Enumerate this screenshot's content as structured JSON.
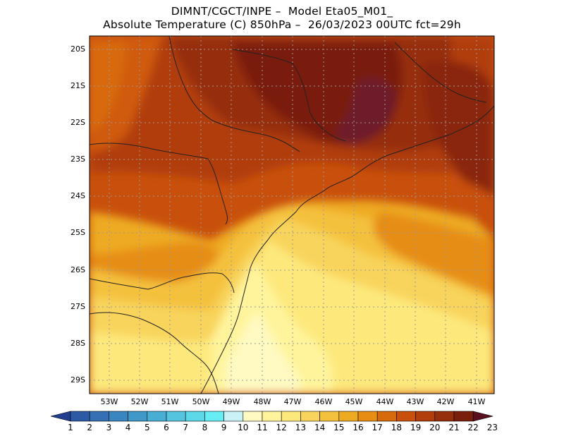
{
  "title": {
    "line1": "DIMNT/CGCT/INPE –  Model Eta05_M01_",
    "line2": "Absolute Temperature (C) 850hPa –  26/03/2023 00UTC fct=29h"
  },
  "axes": {
    "lat_labels": [
      "20S",
      "21S",
      "22S",
      "23S",
      "24S",
      "25S",
      "26S",
      "27S",
      "28S",
      "29S"
    ],
    "lon_labels": [
      "53W",
      "52W",
      "51W",
      "50W",
      "49W",
      "48W",
      "47W",
      "46W",
      "45W",
      "44W",
      "43W",
      "42W",
      "41W"
    ],
    "lat_range": [
      -29.5,
      -19.6
    ],
    "lon_range": [
      -53.8,
      -40.6
    ],
    "grid": "dotted"
  },
  "colorbar": {
    "labels": [
      "1",
      "2",
      "3",
      "4",
      "5",
      "6",
      "7",
      "8",
      "9",
      "10",
      "11",
      "12",
      "13",
      "14",
      "15",
      "16",
      "17",
      "18",
      "19",
      "20",
      "21",
      "22",
      "23"
    ],
    "colors": [
      "#243e8f",
      "#2d5aa5",
      "#3470b3",
      "#3a86c0",
      "#4098c9",
      "#49aed4",
      "#55c4de",
      "#5cd8e8",
      "#66eef4",
      "#c9f1f6",
      "#fff9c2",
      "#fff49c",
      "#fde87c",
      "#f8d45c",
      "#f4c13e",
      "#eeaa22",
      "#e68d12",
      "#d86a0e",
      "#c9500c",
      "#b13e0b",
      "#962f0b",
      "#7a1f0c",
      "#5a0f1f"
    ]
  },
  "map": {
    "variable": "Absolute Temperature (C) 850hPa",
    "hotspot_colors": [
      "#7a1c2c",
      "#6e1a10",
      "#8a2a0c"
    ]
  }
}
